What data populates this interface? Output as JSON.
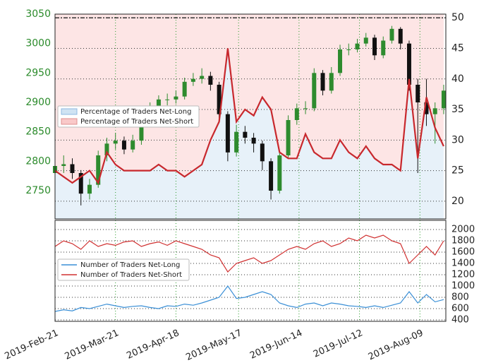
{
  "chart_data": [
    {
      "type": "candlestick",
      "x": [
        "2019-Feb-21",
        "2019-Feb-25",
        "2019-Mar-01",
        "2019-Mar-05",
        "2019-Mar-09",
        "2019-Mar-13",
        "2019-Mar-17",
        "2019-Mar-21",
        "2019-Mar-25",
        "2019-Mar-29",
        "2019-Apr-02",
        "2019-Apr-06",
        "2019-Apr-10",
        "2019-Apr-14",
        "2019-Apr-18",
        "2019-Apr-22",
        "2019-Apr-26",
        "2019-Apr-30",
        "2019-May-04",
        "2019-May-08",
        "2019-May-12",
        "2019-May-16",
        "2019-May-20",
        "2019-May-24",
        "2019-May-28",
        "2019-Jun-01",
        "2019-Jun-05",
        "2019-Jun-09",
        "2019-Jun-13",
        "2019-Jun-17",
        "2019-Jun-21",
        "2019-Jun-25",
        "2019-Jun-29",
        "2019-Jul-03",
        "2019-Jul-07",
        "2019-Jul-11",
        "2019-Jul-15",
        "2019-Jul-19",
        "2019-Jul-23",
        "2019-Jul-27",
        "2019-Jul-31",
        "2019-Aug-04",
        "2019-Aug-08",
        "2019-Aug-12",
        "2019-Aug-16",
        "2019-Aug-20"
      ],
      "open": [
        2780,
        2792,
        2795,
        2780,
        2745,
        2760,
        2810,
        2830,
        2835,
        2820,
        2835,
        2870,
        2890,
        2905,
        2905,
        2910,
        2935,
        2940,
        2945,
        2930,
        2880,
        2815,
        2850,
        2840,
        2830,
        2800,
        2750,
        2810,
        2870,
        2890,
        2890,
        2950,
        2920,
        2950,
        2990,
        2990,
        3000,
        3010,
        2980,
        3005,
        3025,
        3000,
        2930,
        2900,
        2880,
        2890
      ],
      "high": [
        2805,
        2810,
        2805,
        2785,
        2770,
        2818,
        2840,
        2848,
        2842,
        2845,
        2878,
        2900,
        2912,
        2915,
        2920,
        2942,
        2950,
        2958,
        2952,
        2935,
        2885,
        2862,
        2860,
        2848,
        2835,
        2805,
        2815,
        2878,
        2898,
        2902,
        2958,
        2955,
        2960,
        2998,
        3000,
        3008,
        3018,
        3015,
        3012,
        3030,
        3028,
        3005,
        2940,
        2940,
        2900,
        2930
      ],
      "low": [
        2770,
        2780,
        2770,
        2725,
        2735,
        2755,
        2800,
        2820,
        2812,
        2815,
        2828,
        2862,
        2882,
        2895,
        2898,
        2905,
        2928,
        2932,
        2920,
        2870,
        2800,
        2808,
        2830,
        2815,
        2785,
        2735,
        2745,
        2805,
        2862,
        2880,
        2885,
        2912,
        2915,
        2945,
        2980,
        2985,
        2995,
        2972,
        2975,
        3000,
        2990,
        2920,
        2780,
        2860,
        2830,
        2880
      ],
      "close": [
        2792,
        2795,
        2780,
        2745,
        2760,
        2810,
        2830,
        2835,
        2820,
        2835,
        2870,
        2890,
        2905,
        2905,
        2910,
        2935,
        2940,
        2945,
        2930,
        2880,
        2815,
        2850,
        2840,
        2830,
        2800,
        2750,
        2810,
        2870,
        2890,
        2890,
        2950,
        2920,
        2950,
        2990,
        2990,
        3000,
        3010,
        2980,
        3005,
        3025,
        3000,
        2930,
        2900,
        2880,
        2890,
        2920
      ],
      "up_color": "#2e8b2e",
      "down_color": "#111111",
      "ylim": [
        2702,
        3050
      ],
      "yticks": [
        2750,
        2800,
        2850,
        2900,
        2950,
        3000,
        3050
      ],
      "y2lim": [
        17.1,
        50.6
      ],
      "y2ticks": [
        20,
        25,
        30,
        35,
        40,
        45,
        50
      ],
      "series": [
        {
          "name": "Percentage of Traders Net-Long",
          "color": "#cfe3f3"
        },
        {
          "name": "Percentage of Traders Net-Short",
          "color": "#c8282d",
          "axis": "y2",
          "values": [
            25,
            24,
            23,
            24,
            25,
            23,
            28,
            26,
            25,
            25,
            25,
            25,
            26,
            25,
            25,
            24,
            25,
            26,
            30,
            33,
            45,
            33,
            35,
            34,
            37,
            35,
            28,
            27,
            27,
            31,
            28,
            27,
            27,
            30,
            28,
            27,
            29,
            27,
            26,
            26,
            25,
            40,
            27,
            37,
            32,
            29
          ]
        }
      ],
      "grid": true
    },
    {
      "type": "line",
      "xlim": [
        "2019-Feb-21",
        "2019-Aug-21"
      ],
      "xticks": [
        "2019-Feb-21",
        "2019-Mar-21",
        "2019-Apr-18",
        "2019-May-17",
        "2019-Jun-14",
        "2019-Jul-12",
        "2019-Aug-09"
      ],
      "ylim": [
        375,
        2162
      ],
      "yticks": [
        400,
        600,
        800,
        1000,
        1200,
        1400,
        1600,
        1800,
        2000
      ],
      "series": [
        {
          "name": "Number of Traders Net-Long",
          "color": "#3a8fd6",
          "values": [
            550,
            580,
            560,
            620,
            600,
            640,
            680,
            650,
            620,
            640,
            650,
            620,
            600,
            650,
            640,
            680,
            660,
            700,
            750,
            800,
            1000,
            780,
            800,
            850,
            900,
            850,
            700,
            650,
            620,
            680,
            700,
            650,
            700,
            680,
            650,
            640,
            620,
            650,
            620,
            660,
            700,
            900,
            700,
            850,
            720,
            760
          ]
        },
        {
          "name": "Number of Traders Net-Short",
          "color": "#d03030",
          "values": [
            1700,
            1800,
            1750,
            1650,
            1800,
            1700,
            1750,
            1720,
            1780,
            1800,
            1700,
            1750,
            1780,
            1720,
            1800,
            1750,
            1700,
            1650,
            1550,
            1500,
            1250,
            1400,
            1450,
            1500,
            1400,
            1450,
            1550,
            1650,
            1700,
            1650,
            1750,
            1800,
            1700,
            1750,
            1850,
            1800,
            1900,
            1850,
            1900,
            1800,
            1750,
            1400,
            1550,
            1700,
            1550,
            1800
          ]
        }
      ],
      "grid": true
    }
  ]
}
